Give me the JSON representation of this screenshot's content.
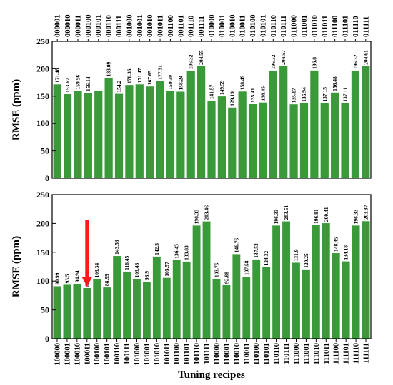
{
  "colors": {
    "bar": "#3a9a3a",
    "arrow": "#ff1a1a",
    "axis": "#000000"
  },
  "chart_data": [
    {
      "type": "bar",
      "ylabel": "RMSE (ppm)",
      "xlabel": "",
      "ylim": [
        0,
        250
      ],
      "yticks": [
        0,
        50,
        100,
        150,
        200,
        250
      ],
      "category_axis": "top",
      "categories": [
        "000001",
        "000010",
        "000011",
        "000100",
        "000101",
        "000110",
        "000111",
        "001000",
        "001001",
        "001010",
        "001011",
        "001100",
        "001101",
        "001110",
        "001111",
        "010000",
        "010001",
        "010010",
        "010011",
        "010100",
        "010101",
        "010110",
        "010111",
        "011000",
        "011001",
        "011010",
        "011011",
        "011100",
        "011101",
        "011110",
        "011111"
      ],
      "values": [
        171.48,
        153.67,
        159.56,
        156.14,
        160.21,
        183.09,
        154.2,
        170.36,
        171.47,
        167.65,
        177.31,
        159.39,
        158.24,
        196.32,
        204.55,
        141.57,
        149.59,
        129.19,
        158.49,
        135.41,
        138.45,
        196.32,
        204.57,
        135.17,
        136.94,
        196.8,
        137.15,
        156.48,
        137.11,
        196.32,
        204.61
      ],
      "labels": [
        "171.48",
        "153.67",
        "159.56",
        "156.14",
        "",
        "183.09",
        "154.2",
        "170.36",
        "171.47",
        "167.65",
        "177.31",
        "159.39",
        "158.24",
        "196.32",
        "204.55",
        "141.57",
        "149.59",
        "129.19",
        "158.49",
        "135.41",
        "138.45",
        "196.32",
        "204.57",
        "135.17",
        "136.94",
        "196.8",
        "137.15",
        "156.48",
        "137.11",
        "196.32",
        "204.61"
      ]
    },
    {
      "type": "bar",
      "ylabel": "RMSE (ppm)",
      "xlabel": "Tuning recipes",
      "ylim": [
        0,
        250
      ],
      "yticks": [
        0,
        50,
        100,
        150,
        200,
        250
      ],
      "category_axis": "bottom",
      "categories": [
        "100000",
        "100001",
        "100010",
        "100011",
        "100100",
        "100101",
        "100110",
        "100111",
        "101000",
        "101001",
        "101010",
        "101011",
        "101100",
        "101101",
        "101110",
        "101111",
        "110000",
        "110001",
        "110010",
        "110011",
        "110100",
        "110101",
        "110110",
        "110111",
        "111000",
        "111001",
        "111010",
        "111011",
        "111100",
        "111101",
        "111110",
        "111111"
      ],
      "values": [
        90.99,
        93.5,
        94.94,
        87.91,
        103.34,
        88.99,
        143.53,
        116.45,
        103.48,
        98.9,
        142.5,
        105.57,
        136.45,
        133.83,
        196.33,
        203.46,
        103.75,
        92.88,
        146.76,
        107.58,
        137.53,
        124.32,
        196.33,
        203.51,
        131.9,
        120.25,
        196.81,
        200.41,
        148.45,
        134.18,
        196.33,
        203.87
      ],
      "labels": [
        "90.99",
        "93.5",
        "94.94",
        "87.91",
        "103.34",
        "88.99",
        "143.53",
        "116.45",
        "103.48",
        "98.9",
        "142.5",
        "105.57",
        "136.45",
        "133.83",
        "196.33",
        "203.46",
        "103.75",
        "92.88",
        "146.76",
        "107.58",
        "137.53",
        "124.32",
        "196.33",
        "203.51",
        "131.9",
        "120.25",
        "196.81",
        "200.41",
        "148.45",
        "134.18",
        "196.33",
        "203.87"
      ],
      "annotation": {
        "type": "arrow",
        "category": "100011"
      }
    }
  ]
}
